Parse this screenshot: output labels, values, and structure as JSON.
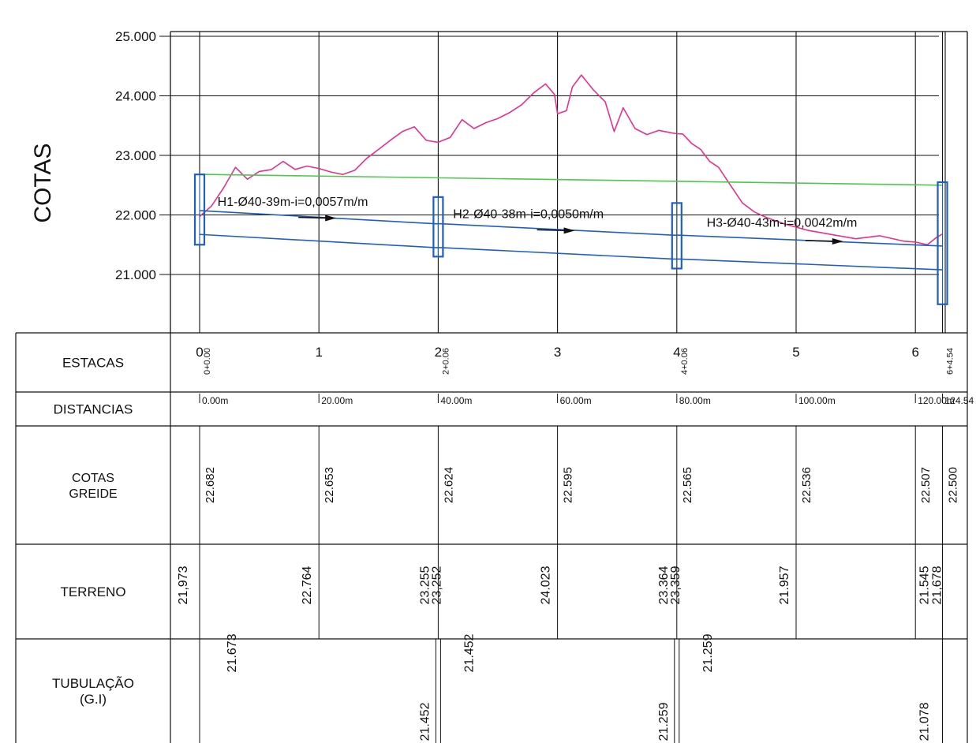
{
  "chart_data": {
    "type": "line",
    "ylabel": "COTAS",
    "ylim": [
      20.2,
      25.0
    ],
    "xlim": [
      -5,
      125
    ],
    "y_ticks": [
      "25.000",
      "24.000",
      "23.000",
      "22.000",
      "21.000"
    ],
    "y_tick_values": [
      25,
      24,
      23,
      22,
      21
    ],
    "grid": true,
    "series": [
      {
        "key": "terrain",
        "color": "#e8308c",
        "x": [
          0,
          2,
          4,
          6,
          8,
          10,
          12,
          14,
          16,
          18,
          20,
          22,
          24,
          26,
          28,
          30,
          32,
          34,
          36,
          38,
          40,
          42,
          44,
          46,
          48,
          50,
          52,
          54,
          56,
          58,
          59.5,
          60,
          61.5,
          62.5,
          64,
          66,
          68,
          69.5,
          71,
          73,
          75,
          77,
          79,
          80,
          81,
          82.5,
          84,
          85.5,
          87,
          89,
          91,
          93,
          95,
          98,
          102,
          106,
          110,
          114,
          118,
          120,
          122,
          123.5,
          124.5
        ],
        "y": [
          21.973,
          22.15,
          22.45,
          22.8,
          22.6,
          22.73,
          22.76,
          22.9,
          22.764,
          22.82,
          22.78,
          22.72,
          22.68,
          22.75,
          22.95,
          23.1,
          23.255,
          23.4,
          23.48,
          23.252,
          23.22,
          23.3,
          23.6,
          23.45,
          23.55,
          23.62,
          23.72,
          23.85,
          24.05,
          24.2,
          24.023,
          23.7,
          23.75,
          24.15,
          24.35,
          24.1,
          23.9,
          23.4,
          23.8,
          23.45,
          23.35,
          23.42,
          23.38,
          23.364,
          23.359,
          23.2,
          23.1,
          22.9,
          22.8,
          22.5,
          22.2,
          22.05,
          21.957,
          21.85,
          21.74,
          21.67,
          21.6,
          21.65,
          21.56,
          21.545,
          21.5,
          21.62,
          21.678
        ]
      },
      {
        "key": "greide",
        "color": "#4cc84c",
        "x": [
          0,
          124.54
        ],
        "y": [
          22.682,
          22.5
        ]
      },
      {
        "key": "tube_top",
        "color": "#1f5fbf",
        "x": [
          0,
          39.5,
          40.5,
          79.5,
          80.5,
          124.54
        ],
        "y": [
          22.073,
          21.852,
          21.852,
          21.659,
          21.659,
          21.478
        ]
      },
      {
        "key": "tube_bottom",
        "color": "#1f5fbf",
        "x": [
          0,
          39.5,
          40.5,
          79.5,
          80.5,
          124.54
        ],
        "y": [
          21.673,
          21.452,
          21.452,
          21.259,
          21.259,
          21.078
        ]
      }
    ],
    "annotations": [
      {
        "text": "H1-Ø40-39m-i=0,0057m/m",
        "x": 3,
        "y": 22.15
      },
      {
        "text": "H2-Ø40-38m-i=0,0050m/m",
        "x": 42.5,
        "y": 21.95
      },
      {
        "text": "H3-Ø40-43m-i=0,0042m/m",
        "x": 85,
        "y": 21.8
      }
    ],
    "manholes": [
      {
        "x": 0,
        "top": 22.68,
        "bottom": 21.5
      },
      {
        "x": 40,
        "top": 22.3,
        "bottom": 21.3
      },
      {
        "x": 80,
        "top": 22.2,
        "bottom": 21.1
      },
      {
        "x": 124.54,
        "top": 22.55,
        "bottom": 20.5
      }
    ],
    "grid_x": [
      -5,
      0,
      20,
      40,
      60,
      80,
      100,
      120,
      124.54,
      125
    ]
  },
  "table": {
    "rows": [
      {
        "key": "estacas",
        "label": "ESTACAS"
      },
      {
        "key": "distancias",
        "label": "DISTANCIAS"
      },
      {
        "key": "cotas_greide",
        "label_lines": [
          "COTAS",
          "GREIDE"
        ]
      },
      {
        "key": "terreno",
        "label": "TERRENO"
      },
      {
        "key": "tubulacao",
        "label_lines": [
          "TUBULAÇÃO",
          "(G.I)"
        ]
      }
    ],
    "estacas": [
      {
        "x": 0,
        "big": "0",
        "small": "0+0.00"
      },
      {
        "x": 20,
        "big": "1"
      },
      {
        "x": 40,
        "big": "2",
        "small": "2+0.06"
      },
      {
        "x": 60,
        "big": "3"
      },
      {
        "x": 80,
        "big": "4",
        "small": "4+0.06"
      },
      {
        "x": 100,
        "big": "5"
      },
      {
        "x": 120,
        "big": "6"
      },
      {
        "x": 124.54,
        "small": "6+4.54"
      }
    ],
    "distancias": [
      {
        "x": 0,
        "text": "0.00m"
      },
      {
        "x": 20,
        "text": "20.00m"
      },
      {
        "x": 40,
        "text": "40.00m"
      },
      {
        "x": 60,
        "text": "60.00m"
      },
      {
        "x": 80,
        "text": "80.00m"
      },
      {
        "x": 100,
        "text": "100.00m"
      },
      {
        "x": 120,
        "text": "120.00m"
      },
      {
        "x": 124.54,
        "text": "124.54"
      }
    ],
    "cotas_greide": [
      {
        "x": 0,
        "text": "22.682"
      },
      {
        "x": 20,
        "text": "22.653"
      },
      {
        "x": 40,
        "text": "22.624"
      },
      {
        "x": 60,
        "text": "22.595"
      },
      {
        "x": 80,
        "text": "22.565"
      },
      {
        "x": 100,
        "text": "22.536"
      },
      {
        "x": 120,
        "text": "22.507"
      },
      {
        "x": 124.54,
        "text": "22.500"
      }
    ],
    "terreno": [
      {
        "x": 0,
        "text": "21,973"
      },
      {
        "x": 20,
        "text": "22.764"
      },
      {
        "x": 40,
        "text": "23.255"
      },
      {
        "x": 40,
        "text": "23,252"
      },
      {
        "x": 60,
        "text": "24.023"
      },
      {
        "x": 80,
        "text": "23.364"
      },
      {
        "x": 80,
        "text": "23,359"
      },
      {
        "x": 100,
        "text": "21.957"
      },
      {
        "x": 120,
        "text": "21.545"
      },
      {
        "x": 124.54,
        "text": "21,678"
      }
    ],
    "tubulacao": [
      {
        "x": 0,
        "pos": "top",
        "text": "21.673"
      },
      {
        "x": 40,
        "pos": "bottom",
        "text": "21.452"
      },
      {
        "x": 40,
        "pos": "top",
        "text": "21.452"
      },
      {
        "x": 80,
        "pos": "bottom",
        "text": "21.259"
      },
      {
        "x": 80,
        "pos": "top",
        "text": "21.259"
      },
      {
        "x": 124.54,
        "pos": "bottom",
        "text": "21.078"
      }
    ]
  }
}
